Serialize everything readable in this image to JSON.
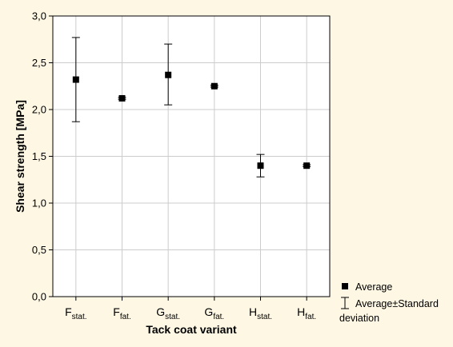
{
  "chart_data": {
    "type": "scatter",
    "xlabel": "Tack coat variant",
    "ylabel": "Shear strength [MPa]",
    "ylim": [
      0,
      3
    ],
    "yticks": [
      "0,0",
      "0,5",
      "1,0",
      "1,5",
      "2,0",
      "2,5",
      "3,0"
    ],
    "grid": true,
    "legend_position": "bottom-right, outside plot",
    "categories": [
      {
        "main": "F",
        "sub": "stat."
      },
      {
        "main": "F",
        "sub": "fat."
      },
      {
        "main": "G",
        "sub": "stat."
      },
      {
        "main": "G",
        "sub": "fat."
      },
      {
        "main": "H",
        "sub": "stat."
      },
      {
        "main": "H",
        "sub": "fat."
      }
    ],
    "series": [
      {
        "legend": "Average",
        "values": [
          2.32,
          2.12,
          2.37,
          2.25,
          1.4,
          1.4
        ],
        "marker_color": "#000000"
      }
    ],
    "error_bars": {
      "legend_line1": "Average±Standard",
      "legend_line2": "deviation",
      "lower": [
        1.87,
        2.11,
        2.05,
        2.24,
        1.28,
        1.39
      ],
      "upper": [
        2.77,
        2.13,
        2.7,
        2.26,
        1.52,
        1.41
      ]
    },
    "colors": {
      "background": "#fdf7e3",
      "plot_area": "#ffffff",
      "grid": "#cccccc",
      "axis": "#000000"
    }
  }
}
